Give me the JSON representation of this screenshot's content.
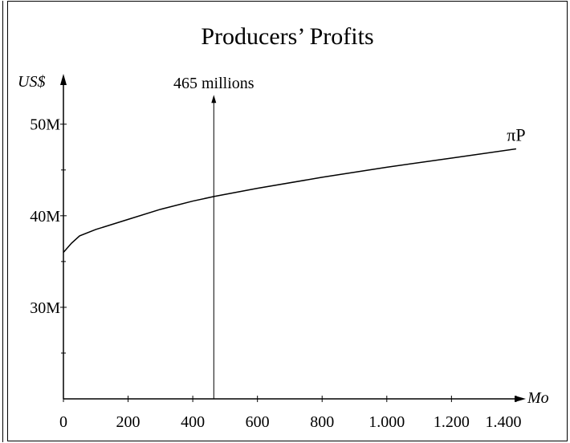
{
  "chart_data": {
    "type": "line",
    "title": "Producers’ Profits",
    "y_label": "US$",
    "x_label": "Mo",
    "x": [
      0,
      25,
      50,
      100,
      200,
      300,
      400,
      465,
      600,
      800,
      1000,
      1200,
      1400
    ],
    "series": [
      {
        "name": "πP",
        "color": "#000000",
        "values": [
          36.0,
          37.0,
          37.8,
          38.5,
          39.6,
          40.7,
          41.6,
          42.1,
          43.0,
          44.2,
          45.3,
          46.3,
          47.3
        ]
      }
    ],
    "xlim": [
      0,
      1430
    ],
    "ylim": [
      20,
      55.5
    ],
    "xticks": [
      0,
      200,
      400,
      600,
      800,
      {
        "value": 1000,
        "label": "1.000"
      },
      {
        "value": 1200,
        "label": "1.200"
      },
      {
        "value": 1400,
        "label": "1.400"
      }
    ],
    "yticks": [
      {
        "value": 30,
        "label": "30M"
      },
      {
        "value": 40,
        "label": "40M"
      },
      {
        "value": 50,
        "label": "50M"
      }
    ],
    "yminorticks": [
      25,
      35,
      45
    ],
    "marker": {
      "x": 465,
      "y": 53.2,
      "label": "465 millions"
    }
  }
}
